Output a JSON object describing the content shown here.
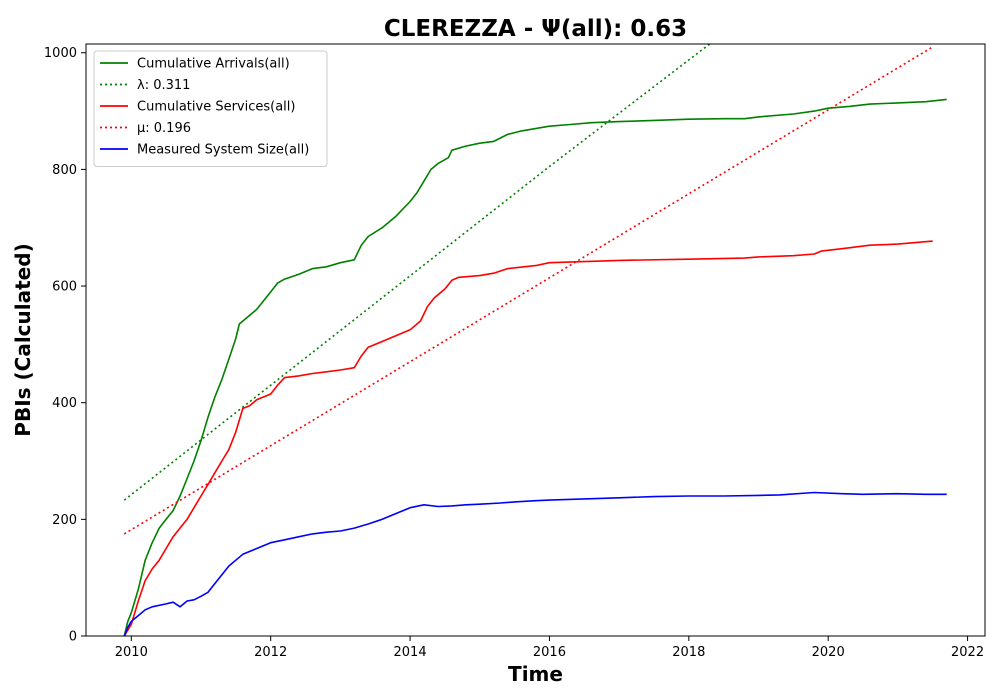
{
  "chart_data": {
    "type": "line",
    "title": "CLEREZZA -  Ψ(all): 0.63",
    "xlabel": "Time",
    "ylabel": "PBIs (Calculated)",
    "xlim": [
      2009.35,
      2022.25
    ],
    "ylim": [
      0,
      1015
    ],
    "x_ticks": [
      2010,
      2012,
      2014,
      2016,
      2018,
      2020,
      2022
    ],
    "y_ticks": [
      0,
      200,
      400,
      600,
      800,
      1000
    ],
    "grid": false,
    "legend_position": "top-left",
    "series": [
      {
        "name": "Cumulative Arrivals(all)",
        "style": "solid",
        "color": "#008000",
        "points": [
          [
            2009.9,
            0
          ],
          [
            2009.95,
            25
          ],
          [
            2010.0,
            40
          ],
          [
            2010.1,
            80
          ],
          [
            2010.2,
            130
          ],
          [
            2010.3,
            160
          ],
          [
            2010.4,
            185
          ],
          [
            2010.5,
            200
          ],
          [
            2010.6,
            215
          ],
          [
            2010.7,
            240
          ],
          [
            2010.8,
            270
          ],
          [
            2010.9,
            300
          ],
          [
            2011.0,
            335
          ],
          [
            2011.1,
            375
          ],
          [
            2011.2,
            410
          ],
          [
            2011.3,
            440
          ],
          [
            2011.4,
            475
          ],
          [
            2011.5,
            510
          ],
          [
            2011.55,
            535
          ],
          [
            2011.7,
            550
          ],
          [
            2011.8,
            560
          ],
          [
            2011.9,
            575
          ],
          [
            2012.0,
            590
          ],
          [
            2012.1,
            605
          ],
          [
            2012.2,
            612
          ],
          [
            2012.4,
            620
          ],
          [
            2012.6,
            630
          ],
          [
            2012.8,
            633
          ],
          [
            2013.0,
            640
          ],
          [
            2013.2,
            645
          ],
          [
            2013.3,
            670
          ],
          [
            2013.4,
            685
          ],
          [
            2013.6,
            700
          ],
          [
            2013.8,
            720
          ],
          [
            2014.0,
            745
          ],
          [
            2014.1,
            760
          ],
          [
            2014.2,
            780
          ],
          [
            2014.3,
            800
          ],
          [
            2014.4,
            810
          ],
          [
            2014.55,
            820
          ],
          [
            2014.6,
            833
          ],
          [
            2014.8,
            840
          ],
          [
            2015.0,
            845
          ],
          [
            2015.2,
            848
          ],
          [
            2015.4,
            860
          ],
          [
            2015.6,
            866
          ],
          [
            2015.8,
            870
          ],
          [
            2016.0,
            874
          ],
          [
            2016.3,
            877
          ],
          [
            2016.6,
            880
          ],
          [
            2017.0,
            882
          ],
          [
            2017.5,
            884
          ],
          [
            2018.0,
            886
          ],
          [
            2018.5,
            887
          ],
          [
            2018.8,
            887
          ],
          [
            2019.0,
            890
          ],
          [
            2019.5,
            895
          ],
          [
            2019.8,
            900
          ],
          [
            2020.0,
            905
          ],
          [
            2020.3,
            908
          ],
          [
            2020.6,
            912
          ],
          [
            2021.0,
            914
          ],
          [
            2021.4,
            916
          ],
          [
            2021.7,
            920
          ]
        ]
      },
      {
        "name": "λ: 0.311",
        "style": "dotted",
        "color": "#008000",
        "points": [
          [
            2009.9,
            233
          ],
          [
            2016.0,
            805
          ],
          [
            2018.3,
            1015
          ]
        ]
      },
      {
        "name": "Cumulative Services(all)",
        "style": "solid",
        "color": "#ff0000",
        "points": [
          [
            2009.9,
            0
          ],
          [
            2010.0,
            20
          ],
          [
            2010.1,
            60
          ],
          [
            2010.2,
            95
          ],
          [
            2010.3,
            115
          ],
          [
            2010.4,
            130
          ],
          [
            2010.5,
            150
          ],
          [
            2010.6,
            170
          ],
          [
            2010.8,
            200
          ],
          [
            2010.9,
            220
          ],
          [
            2011.0,
            240
          ],
          [
            2011.1,
            260
          ],
          [
            2011.2,
            280
          ],
          [
            2011.3,
            300
          ],
          [
            2011.4,
            320
          ],
          [
            2011.5,
            350
          ],
          [
            2011.6,
            390
          ],
          [
            2011.7,
            395
          ],
          [
            2011.8,
            405
          ],
          [
            2012.0,
            415
          ],
          [
            2012.1,
            430
          ],
          [
            2012.2,
            443
          ],
          [
            2012.4,
            446
          ],
          [
            2012.6,
            450
          ],
          [
            2012.8,
            453
          ],
          [
            2013.0,
            456
          ],
          [
            2013.2,
            460
          ],
          [
            2013.3,
            480
          ],
          [
            2013.4,
            495
          ],
          [
            2013.6,
            505
          ],
          [
            2013.8,
            515
          ],
          [
            2014.0,
            525
          ],
          [
            2014.15,
            540
          ],
          [
            2014.25,
            565
          ],
          [
            2014.35,
            580
          ],
          [
            2014.5,
            595
          ],
          [
            2014.6,
            610
          ],
          [
            2014.7,
            615
          ],
          [
            2015.0,
            618
          ],
          [
            2015.2,
            622
          ],
          [
            2015.4,
            630
          ],
          [
            2015.8,
            635
          ],
          [
            2016.0,
            640
          ],
          [
            2016.5,
            642
          ],
          [
            2017.0,
            644
          ],
          [
            2018.0,
            646
          ],
          [
            2018.8,
            648
          ],
          [
            2019.0,
            650
          ],
          [
            2019.5,
            652
          ],
          [
            2019.8,
            655
          ],
          [
            2019.9,
            660
          ],
          [
            2020.2,
            664
          ],
          [
            2020.6,
            670
          ],
          [
            2021.0,
            672
          ],
          [
            2021.5,
            677
          ]
        ]
      },
      {
        "name": "μ: 0.196",
        "style": "dotted",
        "color": "#ff0000",
        "points": [
          [
            2009.9,
            175
          ],
          [
            2021.5,
            1010
          ]
        ]
      },
      {
        "name": "Measured System Size(all)",
        "style": "solid",
        "color": "#0000ff",
        "points": [
          [
            2009.9,
            0
          ],
          [
            2009.95,
            15
          ],
          [
            2010.0,
            25
          ],
          [
            2010.1,
            35
          ],
          [
            2010.2,
            45
          ],
          [
            2010.3,
            50
          ],
          [
            2010.5,
            55
          ],
          [
            2010.6,
            58
          ],
          [
            2010.7,
            50
          ],
          [
            2010.8,
            60
          ],
          [
            2010.9,
            62
          ],
          [
            2011.0,
            68
          ],
          [
            2011.1,
            75
          ],
          [
            2011.2,
            90
          ],
          [
            2011.3,
            105
          ],
          [
            2011.4,
            120
          ],
          [
            2011.5,
            130
          ],
          [
            2011.6,
            140
          ],
          [
            2011.8,
            150
          ],
          [
            2012.0,
            160
          ],
          [
            2012.2,
            165
          ],
          [
            2012.4,
            170
          ],
          [
            2012.6,
            175
          ],
          [
            2012.8,
            178
          ],
          [
            2013.0,
            180
          ],
          [
            2013.2,
            185
          ],
          [
            2013.4,
            192
          ],
          [
            2013.6,
            200
          ],
          [
            2013.8,
            210
          ],
          [
            2014.0,
            220
          ],
          [
            2014.2,
            225
          ],
          [
            2014.4,
            222
          ],
          [
            2014.6,
            223
          ],
          [
            2014.8,
            225
          ],
          [
            2015.0,
            226
          ],
          [
            2015.3,
            228
          ],
          [
            2015.5,
            230
          ],
          [
            2015.8,
            232
          ],
          [
            2016.0,
            233
          ],
          [
            2016.5,
            235
          ],
          [
            2017.0,
            237
          ],
          [
            2017.5,
            239
          ],
          [
            2018.0,
            240
          ],
          [
            2018.5,
            240
          ],
          [
            2019.0,
            241
          ],
          [
            2019.3,
            242
          ],
          [
            2019.8,
            246
          ],
          [
            2020.2,
            244
          ],
          [
            2020.5,
            243
          ],
          [
            2021.0,
            244
          ],
          [
            2021.4,
            243
          ],
          [
            2021.7,
            243
          ]
        ]
      }
    ]
  }
}
